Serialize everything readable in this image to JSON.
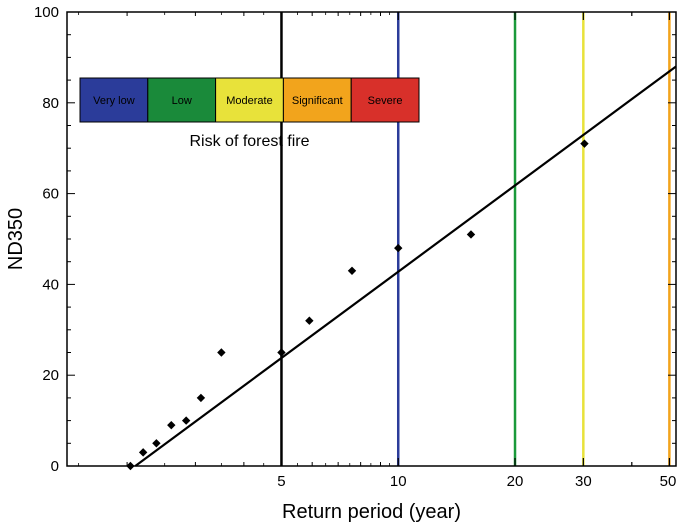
{
  "chart_data": {
    "type": "scatter",
    "title": "",
    "xlabel": "Return period (year)",
    "ylabel": "ND350",
    "xscale": "log",
    "xlim": [
      1.4,
      52
    ],
    "ylim": [
      0,
      100
    ],
    "grid": false,
    "x_ticks": [
      {
        "value": 5,
        "label": "5"
      },
      {
        "value": 10,
        "label": "10"
      },
      {
        "value": 20,
        "label": "20"
      },
      {
        "value": 30,
        "label": "30"
      },
      {
        "value": 50,
        "label": "50"
      }
    ],
    "y_ticks": [
      {
        "value": 0,
        "label": "0"
      },
      {
        "value": 20,
        "label": "20"
      },
      {
        "value": 40,
        "label": "40"
      },
      {
        "value": 60,
        "label": "60"
      },
      {
        "value": 80,
        "label": "80"
      },
      {
        "value": 100,
        "label": "100"
      }
    ],
    "points": [
      {
        "x": 2.04,
        "y": 0
      },
      {
        "x": 2.2,
        "y": 3
      },
      {
        "x": 2.38,
        "y": 5
      },
      {
        "x": 2.6,
        "y": 9
      },
      {
        "x": 2.84,
        "y": 10
      },
      {
        "x": 3.1,
        "y": 15
      },
      {
        "x": 3.5,
        "y": 25
      },
      {
        "x": 5.0,
        "y": 25
      },
      {
        "x": 5.9,
        "y": 32
      },
      {
        "x": 7.6,
        "y": 43
      },
      {
        "x": 10.0,
        "y": 48
      },
      {
        "x": 15.4,
        "y": 51
      },
      {
        "x": 30.2,
        "y": 71
      }
    ],
    "fit_line": [
      {
        "x": 2.1,
        "y": 0
      },
      {
        "x": 52,
        "y": 88
      }
    ],
    "vertical_lines": [
      {
        "x": 5,
        "color": "#000000"
      },
      {
        "x": 10,
        "color": "#2b3c9a"
      },
      {
        "x": 20,
        "color": "#1a9a3a"
      },
      {
        "x": 30,
        "color": "#e8e23a"
      },
      {
        "x": 50,
        "color": "#f2a41c"
      }
    ],
    "legend": {
      "caption": "Risk of forest fire",
      "categories": [
        {
          "label": "Very low",
          "color": "#2b3c9a"
        },
        {
          "label": "Low",
          "color": "#1a8a3a"
        },
        {
          "label": "Moderate",
          "color": "#e8e23a"
        },
        {
          "label": "Significant",
          "color": "#f2a41c"
        },
        {
          "label": "Severe",
          "color": "#d8302a"
        }
      ]
    }
  }
}
